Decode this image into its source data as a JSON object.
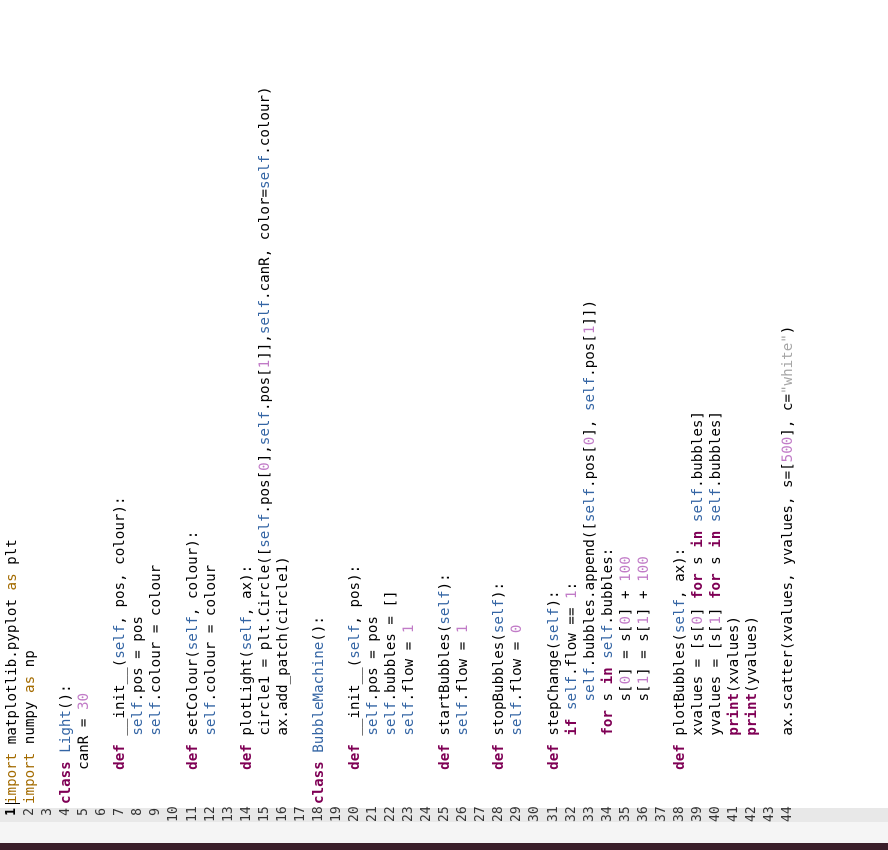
{
  "editor": {
    "language": "python",
    "current_line": 1,
    "lines": [
      {
        "n": "1",
        "t": "import matplotlib.pyplot as plt"
      },
      {
        "n": "2",
        "t": "import numpy as np"
      },
      {
        "n": "3",
        "t": ""
      },
      {
        "n": "4",
        "t": "class Light():"
      },
      {
        "n": "5",
        "t": "    canR = 30"
      },
      {
        "n": "6",
        "t": ""
      },
      {
        "n": "7",
        "t": "    def __init__(self, pos, colour):"
      },
      {
        "n": "8",
        "t": "        self.pos = pos"
      },
      {
        "n": "9",
        "t": "        self.colour = colour"
      },
      {
        "n": "10",
        "t": ""
      },
      {
        "n": "11",
        "t": "    def setColour(self, colour):"
      },
      {
        "n": "12",
        "t": "        self.colour = colour"
      },
      {
        "n": "13",
        "t": ""
      },
      {
        "n": "14",
        "t": "    def plotLight(self, ax):"
      },
      {
        "n": "15",
        "t": "        circle1 = plt.Circle([self.pos[0],self.pos[1]],self.canR, color=self.colour)"
      },
      {
        "n": "16",
        "t": "        ax.add_patch(circle1)"
      },
      {
        "n": "17",
        "t": ""
      },
      {
        "n": "18",
        "t": "class BubbleMachine():"
      },
      {
        "n": "19",
        "t": ""
      },
      {
        "n": "20",
        "t": "    def __init__(self, pos):"
      },
      {
        "n": "21",
        "t": "        self.pos = pos"
      },
      {
        "n": "22",
        "t": "        self.bubbles = []"
      },
      {
        "n": "23",
        "t": "        self.flow = 1"
      },
      {
        "n": "24",
        "t": ""
      },
      {
        "n": "25",
        "t": "    def startBubbles(self):"
      },
      {
        "n": "26",
        "t": "        self.flow = 1"
      },
      {
        "n": "27",
        "t": ""
      },
      {
        "n": "28",
        "t": "    def stopBubbles(self):"
      },
      {
        "n": "29",
        "t": "        self.flow = 0"
      },
      {
        "n": "30",
        "t": ""
      },
      {
        "n": "31",
        "t": "    def stepChange(self):"
      },
      {
        "n": "32",
        "t": "        if self.flow == 1:"
      },
      {
        "n": "33",
        "t": "            self.bubbles.append([self.pos[0], self.pos[1]])"
      },
      {
        "n": "34",
        "t": "        for s in self.bubbles:"
      },
      {
        "n": "35",
        "t": "            s[0] = s[0] + 100"
      },
      {
        "n": "36",
        "t": "            s[1] = s[1] + 100"
      },
      {
        "n": "37",
        "t": ""
      },
      {
        "n": "38",
        "t": "    def plotBubbles(self, ax):"
      },
      {
        "n": "39",
        "t": "        xvalues = [s[0] for s in self.bubbles]"
      },
      {
        "n": "40",
        "t": "        yvalues = [s[1] for s in self.bubbles]"
      },
      {
        "n": "41",
        "t": "        print(xvalues)"
      },
      {
        "n": "42",
        "t": "        print(yvalues)"
      },
      {
        "n": "43",
        "t": ""
      },
      {
        "n": "44",
        "t": "        ax.scatter(xvalues, yvalues, s=[500], c=\"white\")"
      }
    ]
  }
}
